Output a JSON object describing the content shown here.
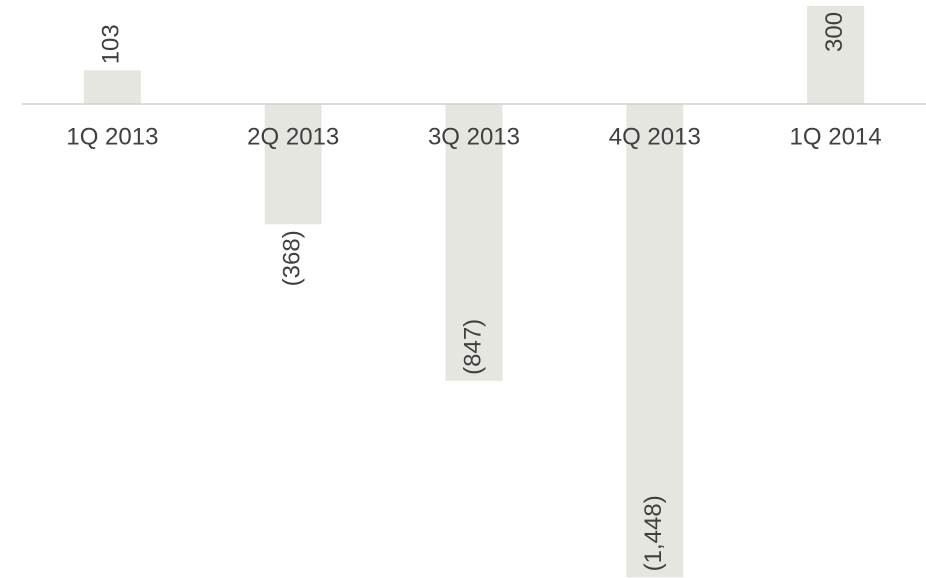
{
  "chart_data": {
    "type": "bar",
    "categories": [
      "1Q 2013",
      "2Q 2013",
      "3Q 2013",
      "4Q 2013",
      "1Q 2014"
    ],
    "values": [
      103,
      -368,
      -847,
      -1448,
      300
    ],
    "value_labels": [
      "103",
      "(368)",
      "(847)",
      "(1,448)",
      "300"
    ],
    "color": "#e6e6e1",
    "ylim": [
      -1450,
      318
    ]
  }
}
